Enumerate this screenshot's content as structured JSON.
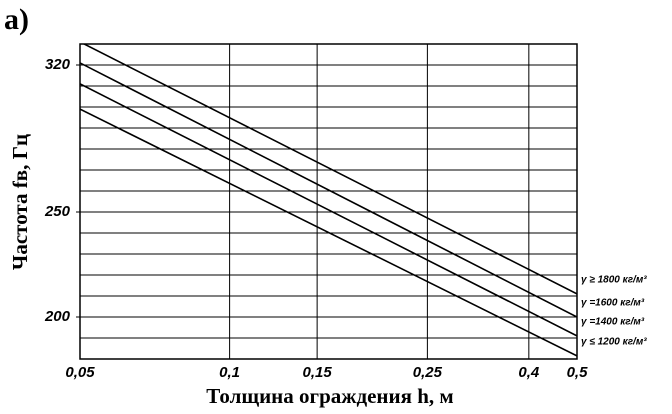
{
  "chart_data": {
    "type": "line",
    "title": "а)",
    "xlabel": "Толщина ограждения h, м",
    "ylabel": "Частота fв, Гц",
    "x": [
      0.05,
      0.5
    ],
    "series": [
      {
        "name": "γ ≥ 1800 кг/м³",
        "color": "#000000",
        "values": [
          331,
          211
        ]
      },
      {
        "name": "γ =1600 кг/м³",
        "color": "#000000",
        "values": [
          321,
          200
        ]
      },
      {
        "name": "γ =1400 кг/м³",
        "color": "#000000",
        "values": [
          311,
          191
        ]
      },
      {
        "name": "γ ≤ 1200 кг/м³",
        "color": "#000000",
        "values": [
          299,
          181.5
        ]
      }
    ],
    "xscale": "log",
    "xlim": [
      0.05,
      0.5
    ],
    "xticks": [
      {
        "value": 0.05,
        "label": "0,05"
      },
      {
        "value": 0.1,
        "label": "0,1"
      },
      {
        "value": 0.15,
        "label": "0,15"
      },
      {
        "value": 0.25,
        "label": "0,25"
      },
      {
        "value": 0.4,
        "label": "0,4"
      },
      {
        "value": 0.5,
        "label": "0,5"
      }
    ],
    "ylim": [
      180,
      330
    ],
    "yticks": [
      200,
      250,
      320
    ],
    "yminor": [
      190,
      200,
      210,
      220,
      230,
      240,
      250,
      260,
      270,
      280,
      290,
      300,
      310,
      320,
      330
    ],
    "grid": true
  }
}
